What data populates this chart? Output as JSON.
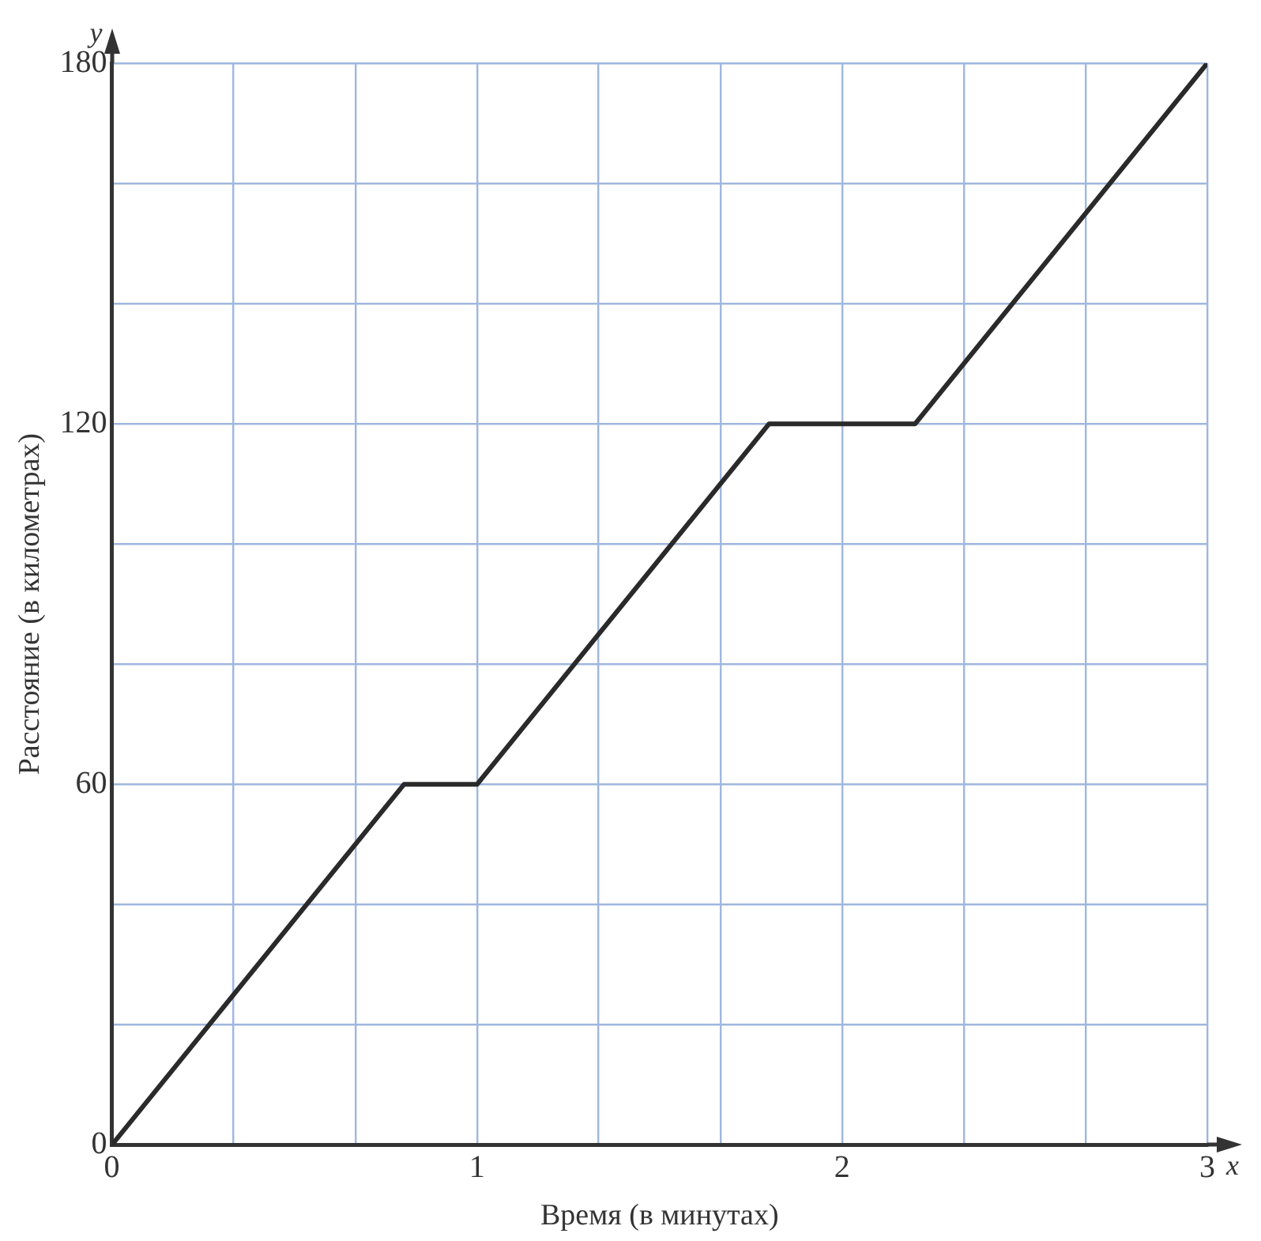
{
  "chart_data": {
    "type": "line",
    "xlabel": "Время (в минутах)",
    "ylabel": "Расстояние (в километрах)",
    "x": [
      0,
      0.8,
      1,
      1.8,
      2.2,
      3
    ],
    "series": [
      {
        "color": "#2a2a2a",
        "values": [
          0,
          60,
          60,
          120,
          120,
          180
        ]
      }
    ],
    "xlim": [
      0,
      3
    ],
    "ylim": [
      0,
      180
    ],
    "xticks": [
      0,
      {
        "value": 0.333,
        "label": null
      },
      {
        "value": 0.667,
        "label": null
      },
      1,
      {
        "value": 1.333,
        "label": null
      },
      {
        "value": 1.667,
        "label": null
      },
      2,
      {
        "value": 2.333,
        "label": null
      },
      {
        "value": 2.667,
        "label": null
      },
      3
    ],
    "yticks": [
      0,
      {
        "value": 20,
        "label": null
      },
      {
        "value": 40,
        "label": null
      },
      60,
      {
        "value": 80,
        "label": null
      },
      {
        "value": 100,
        "label": null
      },
      120,
      {
        "value": 140,
        "label": null
      },
      {
        "value": 160,
        "label": null
      },
      180
    ],
    "grid": true,
    "legend": false,
    "marker": "none",
    "line_style": "solid",
    "annotations": [
      "y",
      "x"
    ]
  }
}
